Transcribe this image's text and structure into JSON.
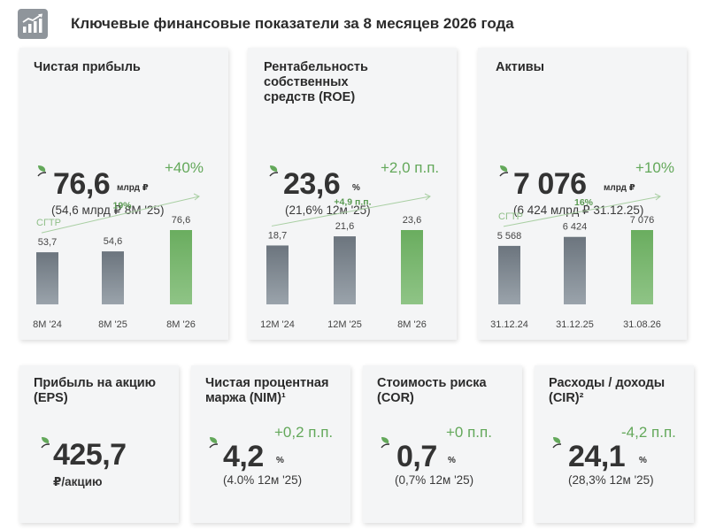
{
  "header": {
    "title": "Ключевые финансовые показатели за 8 месяцев 2026 года",
    "icon": "growth-chart-icon"
  },
  "colors": {
    "accent_green": "#63a85a",
    "bar_grey": "#6c757e",
    "bar_green": "#6aad5f",
    "card_bg": "#f4f5f6"
  },
  "cards": {
    "net_profit": {
      "title": "Чистая прибыль",
      "value": "76,6",
      "unit": "млрд ₽",
      "delta": "+40%",
      "compare": "(54,6 млрд ₽  8M '25)"
    },
    "roe": {
      "title": "Рентабельность собственных средств (ROE)",
      "value": "23,6",
      "unit": "%",
      "delta": "+2,0 п.п.",
      "compare": "(21,6%  12м '25)"
    },
    "assets": {
      "title": "Активы",
      "value": "7 076",
      "unit": "млрд ₽",
      "delta": "+10%",
      "compare": "(6 424 млрд ₽  31.12.25)"
    },
    "eps": {
      "title": "Прибыль на акцию (EPS)",
      "value": "425,7",
      "unit": "₽/акцию"
    },
    "nim": {
      "title": "Чистая процентная маржа (NIM)¹",
      "value": "4,2",
      "unit": "%",
      "delta": "+0,2 п.п.",
      "compare": "(4.0%  12м '25)"
    },
    "cor": {
      "title": "Стоимость риска (COR)",
      "value": "0,7",
      "unit": "%",
      "delta": "+0 п.п.",
      "compare": "(0,7%  12м '25)"
    },
    "cir": {
      "title": "Расходы / доходы (CIR)²",
      "value": "24,1",
      "unit": "%",
      "delta": "-4,2 п.п.",
      "compare": "(28,3%  12м '25)"
    }
  },
  "chart_data": [
    {
      "type": "bar",
      "categories": [
        "8M '24",
        "8M '25",
        "8M '26"
      ],
      "values": [
        53.7,
        54.6,
        76.6
      ],
      "value_labels": [
        "53,7",
        "54,6",
        "76,6"
      ],
      "cagr_label": "CГТР",
      "growth_label": "19%",
      "ylim": [
        0,
        90
      ]
    },
    {
      "type": "bar",
      "categories": [
        "12M '24",
        "12M '25",
        "8M '26"
      ],
      "values": [
        18.7,
        21.6,
        23.6
      ],
      "value_labels": [
        "18,7",
        "21,6",
        "23,6"
      ],
      "growth_label": "+4,9 п.п.",
      "ylim": [
        0,
        27
      ]
    },
    {
      "type": "bar",
      "categories": [
        "31.12.24",
        "31.12.25",
        "31.08.26"
      ],
      "values": [
        5568,
        6424,
        7076
      ],
      "value_labels": [
        "5 568",
        "6 424",
        "7 076"
      ],
      "cagr_label": "CГТР",
      "growth_label": "16%",
      "ylim": [
        0,
        8000
      ]
    }
  ]
}
